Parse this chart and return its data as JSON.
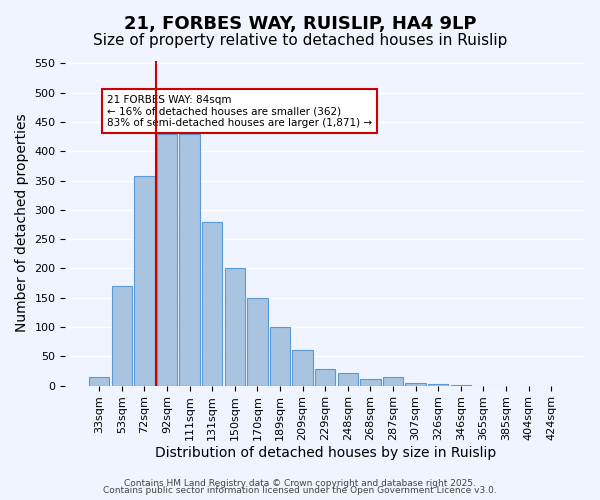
{
  "title": "21, FORBES WAY, RUISLIP, HA4 9LP",
  "subtitle": "Size of property relative to detached houses in Ruislip",
  "xlabel": "Distribution of detached houses by size in Ruislip",
  "ylabel": "Number of detached properties",
  "categories": [
    "33sqm",
    "53sqm",
    "72sqm",
    "92sqm",
    "111sqm",
    "131sqm",
    "150sqm",
    "170sqm",
    "189sqm",
    "209sqm",
    "229sqm",
    "248sqm",
    "268sqm",
    "287sqm",
    "307sqm",
    "326sqm",
    "346sqm",
    "365sqm",
    "385sqm",
    "404sqm",
    "424sqm"
  ],
  "values": [
    15,
    170,
    358,
    430,
    430,
    280,
    200,
    150,
    100,
    60,
    28,
    22,
    12,
    15,
    5,
    3,
    1,
    0,
    0,
    0,
    0
  ],
  "bar_color": "#a8c4e0",
  "bar_edge_color": "#5b9bd5",
  "vline_x": 3,
  "vline_color": "#cc0000",
  "annotation_title": "21 FORBES WAY: 84sqm",
  "annotation_line1": "← 16% of detached houses are smaller (362)",
  "annotation_line2": "83% of semi-detached houses are larger (1,871) →",
  "annotation_box_color": "#ffffff",
  "annotation_box_edge": "#cc0000",
  "ylim": [
    0,
    555
  ],
  "yticks": [
    0,
    50,
    100,
    150,
    200,
    250,
    300,
    350,
    400,
    450,
    500,
    550
  ],
  "footer1": "Contains HM Land Registry data © Crown copyright and database right 2025.",
  "footer2": "Contains public sector information licensed under the Open Government Licence v3.0.",
  "bg_color": "#f0f4ff",
  "grid_color": "#ffffff",
  "title_fontsize": 13,
  "subtitle_fontsize": 11,
  "axis_fontsize": 10,
  "tick_fontsize": 8
}
